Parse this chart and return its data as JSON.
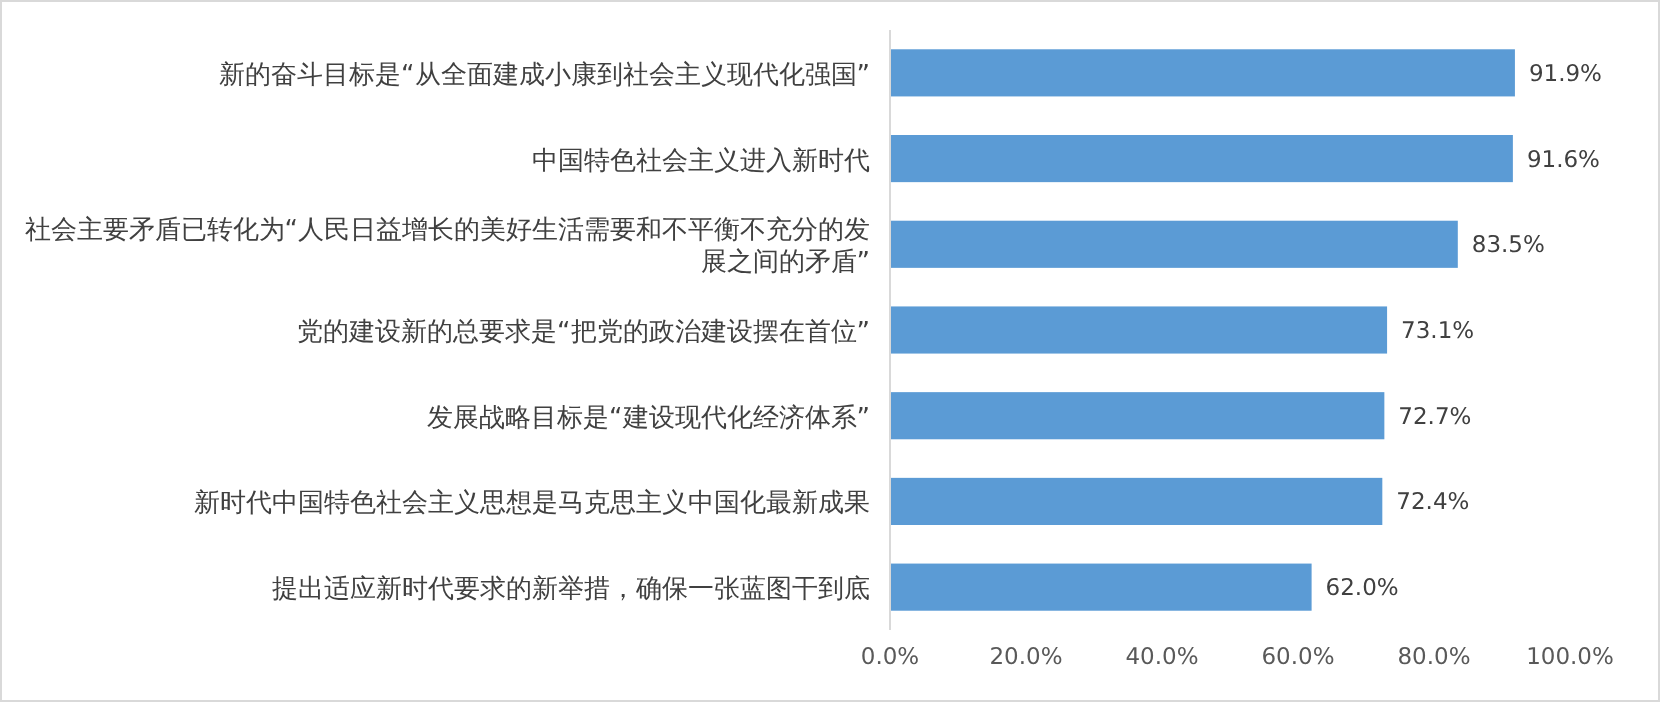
{
  "chart_data": {
    "type": "bar",
    "orientation": "horizontal",
    "categories": [
      "新的奋斗目标是“从全面建成小康到社会主义现代化强国”",
      "中国特色社会主义进入新时代",
      "社会主要矛盾已转化为“人民日益增长的美好生活需要和不平衡不充分的发展之间的矛盾”",
      "党的建设新的总要求是“把党的政治建设摆在首位”",
      "发展战略目标是“建设现代化经济体系”",
      "新时代中国特色社会主义思想是马克思主义中国化最新成果",
      "提出适应新时代要求的新举措，确保一张蓝图干到底"
    ],
    "values": [
      91.9,
      91.6,
      83.5,
      73.1,
      72.7,
      72.4,
      62.0
    ],
    "value_labels": [
      "91.9%",
      "91.6%",
      "83.5%",
      "73.1%",
      "72.7%",
      "72.4%",
      "62.0%"
    ],
    "color": "#5b9bd5",
    "xlim": [
      0,
      100
    ],
    "xticks": [
      {
        "value": 0,
        "label": "0.0%"
      },
      {
        "value": 20,
        "label": "20.0%"
      },
      {
        "value": 40,
        "label": "40.0%"
      },
      {
        "value": 60,
        "label": "60.0%"
      },
      {
        "value": 80,
        "label": "80.0%"
      },
      {
        "value": 100,
        "label": "100.0%"
      }
    ],
    "grid": false
  }
}
